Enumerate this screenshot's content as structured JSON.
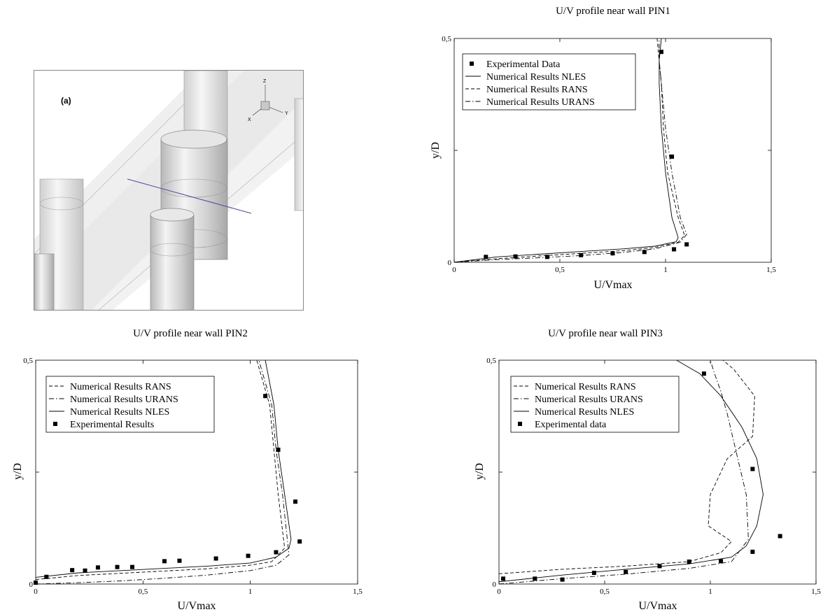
{
  "panel_a": {
    "label": "(a)",
    "triad": {
      "z": "Z",
      "x": "X",
      "y": "Y"
    }
  },
  "chart_data": [
    {
      "type": "line",
      "title": "U/V profile near wall PIN1",
      "xlabel": "U/Vmax",
      "ylabel": "y/D",
      "xlim": [
        0,
        1.5
      ],
      "ylim": [
        0,
        0.5
      ],
      "xticks": [
        0,
        0.5,
        1,
        1.5
      ],
      "xtick_labels": [
        "0",
        "0,5",
        "1",
        "1,5"
      ],
      "yticks": [
        0,
        0.5
      ],
      "ytick_labels": [
        "0",
        "0,5"
      ],
      "grid": false,
      "legend": "top-left",
      "series": [
        {
          "name": "Experimental Data",
          "style": "markers",
          "x": [
            0.15,
            0.29,
            0.44,
            0.6,
            0.75,
            0.9,
            1.04,
            1.1,
            0.98,
            1.03
          ],
          "y": [
            0.012,
            0.013,
            0.012,
            0.016,
            0.02,
            0.023,
            0.029,
            0.04,
            0.47,
            0.236
          ]
        },
        {
          "name": "Numerical Results NLES",
          "style": "solid",
          "x": [
            0.0,
            0.2,
            0.4,
            0.6,
            0.8,
            0.95,
            1.05,
            1.06,
            1.03,
            1.0,
            0.98,
            0.97,
            0.97,
            0.98
          ],
          "y": [
            0.0,
            0.012,
            0.018,
            0.024,
            0.03,
            0.036,
            0.046,
            0.055,
            0.1,
            0.2,
            0.3,
            0.4,
            0.45,
            0.5
          ]
        },
        {
          "name": "Numerical Results RANS",
          "style": "dashed",
          "x": [
            0.0,
            0.2,
            0.4,
            0.6,
            0.8,
            0.95,
            1.06,
            1.09,
            1.06,
            1.01,
            0.99,
            0.98,
            0.97,
            0.96
          ],
          "y": [
            0.0,
            0.008,
            0.014,
            0.02,
            0.026,
            0.033,
            0.045,
            0.06,
            0.1,
            0.2,
            0.3,
            0.4,
            0.45,
            0.5
          ]
        },
        {
          "name": "Numerical Results URANS",
          "style": "dashdot",
          "x": [
            0.0,
            0.2,
            0.4,
            0.6,
            0.8,
            0.95,
            1.07,
            1.1,
            1.07,
            1.03,
            1.0,
            0.98,
            0.97,
            0.97
          ],
          "y": [
            0.0,
            0.006,
            0.01,
            0.015,
            0.022,
            0.03,
            0.045,
            0.062,
            0.1,
            0.2,
            0.3,
            0.4,
            0.45,
            0.5
          ]
        }
      ]
    },
    {
      "type": "line",
      "title": "U/V profile near wall PIN2",
      "xlabel": "U/Vmax",
      "ylabel": "y/D",
      "xlim": [
        0,
        1.5
      ],
      "ylim": [
        0,
        0.5
      ],
      "xticks": [
        0,
        0.5,
        1,
        1.5
      ],
      "xtick_labels": [
        "0",
        "0,5",
        "1",
        "1,5"
      ],
      "yticks": [
        0,
        0.5
      ],
      "ytick_labels": [
        "0",
        "0,5"
      ],
      "grid": false,
      "legend": "top-left",
      "series": [
        {
          "name": "Numerical Results RANS",
          "style": "dashed",
          "x": [
            0.0,
            0.2,
            0.4,
            0.6,
            0.8,
            1.0,
            1.1,
            1.16,
            1.13,
            1.11,
            1.09,
            1.06,
            1.03
          ],
          "y": [
            0.01,
            0.019,
            0.024,
            0.029,
            0.034,
            0.042,
            0.05,
            0.08,
            0.2,
            0.3,
            0.4,
            0.45,
            0.5
          ]
        },
        {
          "name": "Numerical Results URANS",
          "style": "dashdot",
          "x": [
            0.0,
            0.2,
            0.4,
            0.6,
            0.8,
            1.0,
            1.12,
            1.18,
            1.15,
            1.12,
            1.1,
            1.07,
            1.04
          ],
          "y": [
            0.0,
            0.003,
            0.007,
            0.013,
            0.02,
            0.03,
            0.042,
            0.065,
            0.2,
            0.3,
            0.4,
            0.45,
            0.5
          ]
        },
        {
          "name": "Numerical Results NLES",
          "style": "solid",
          "x": [
            0.0,
            0.2,
            0.4,
            0.6,
            0.8,
            1.0,
            1.12,
            1.18,
            1.19,
            1.16,
            1.13,
            1.11,
            1.09,
            1.07
          ],
          "y": [
            0.015,
            0.025,
            0.03,
            0.035,
            0.04,
            0.047,
            0.06,
            0.08,
            0.1,
            0.2,
            0.3,
            0.4,
            0.45,
            0.5
          ]
        },
        {
          "name": "Experimental Results",
          "style": "markers",
          "x": [
            0.0,
            0.05,
            0.17,
            0.23,
            0.29,
            0.38,
            0.45,
            0.6,
            0.67,
            0.84,
            0.99,
            1.12,
            1.23,
            1.21,
            1.13,
            1.07
          ],
          "y": [
            0.003,
            0.016,
            0.031,
            0.03,
            0.037,
            0.038,
            0.038,
            0.051,
            0.052,
            0.057,
            0.063,
            0.071,
            0.095,
            0.184,
            0.3,
            0.42
          ]
        }
      ]
    },
    {
      "type": "line",
      "title": "U/V profile near wall PIN3",
      "xlabel": "U/Vmax",
      "ylabel": "y/D",
      "xlim": [
        0,
        1.5
      ],
      "ylim": [
        0,
        0.5
      ],
      "xticks": [
        0,
        0.5,
        1,
        1.5
      ],
      "xtick_labels": [
        "0",
        "0,5",
        "1",
        "1,5"
      ],
      "yticks": [
        0,
        0.5
      ],
      "ytick_labels": [
        "0",
        "0,5"
      ],
      "grid": false,
      "legend": "top-left",
      "series": [
        {
          "name": "Numerical Results RANS",
          "style": "dashed",
          "x": [
            0.0,
            0.3,
            0.6,
            0.9,
            1.05,
            1.1,
            0.99,
            1.0,
            1.08,
            1.2,
            1.21,
            1.11,
            1.06
          ],
          "y": [
            0.023,
            0.033,
            0.04,
            0.05,
            0.07,
            0.095,
            0.13,
            0.2,
            0.28,
            0.33,
            0.42,
            0.48,
            0.5
          ]
        },
        {
          "name": "Numerical Results URANS",
          "style": "dashdot",
          "x": [
            0.0,
            0.3,
            0.6,
            0.9,
            1.1,
            1.18,
            1.17,
            1.12,
            1.08,
            1.05,
            1.02,
            1.0
          ],
          "y": [
            0.0,
            0.012,
            0.022,
            0.035,
            0.05,
            0.1,
            0.2,
            0.3,
            0.38,
            0.43,
            0.47,
            0.5
          ]
        },
        {
          "name": "Numerical Results NLES",
          "style": "solid",
          "x": [
            0.0,
            0.3,
            0.6,
            0.9,
            1.1,
            1.17,
            1.22,
            1.25,
            1.22,
            1.15,
            1.05,
            0.95,
            0.84
          ],
          "y": [
            0.005,
            0.02,
            0.033,
            0.045,
            0.06,
            0.085,
            0.13,
            0.2,
            0.28,
            0.35,
            0.42,
            0.47,
            0.5
          ]
        },
        {
          "name": "Experimental data",
          "style": "markers",
          "x": [
            0.02,
            0.17,
            0.3,
            0.45,
            0.6,
            0.76,
            0.9,
            1.05,
            1.2,
            1.33,
            1.2,
            0.97
          ],
          "y": [
            0.012,
            0.012,
            0.01,
            0.025,
            0.027,
            0.04,
            0.05,
            0.051,
            0.072,
            0.107,
            0.257,
            0.47
          ]
        }
      ]
    }
  ]
}
